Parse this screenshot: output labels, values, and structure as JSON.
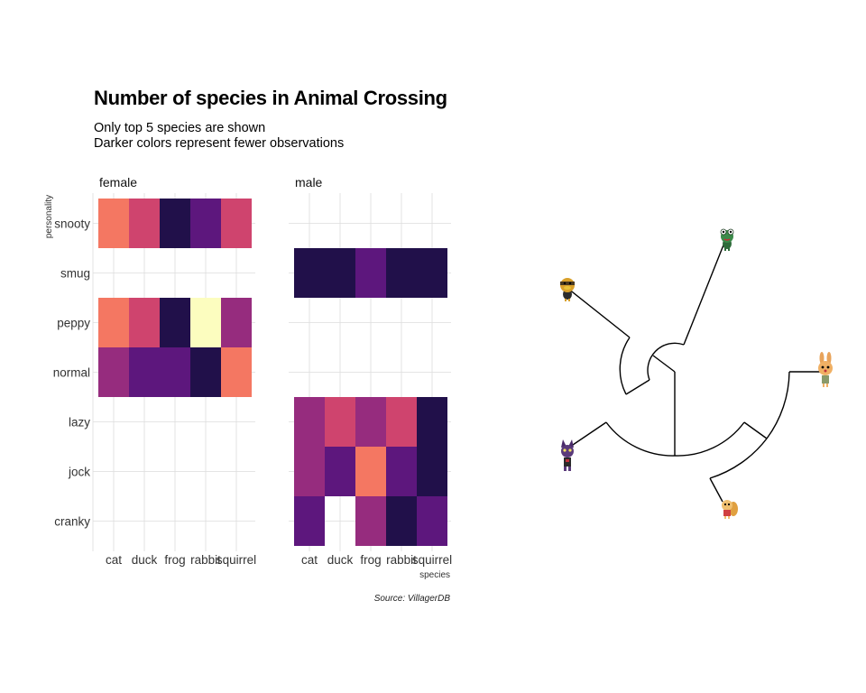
{
  "title": "Number of species in Animal Crossing",
  "subtitle_lines": [
    "Only top 5 species are shown",
    "Darker colors represent fewer observations"
  ],
  "caption": "Source: VillagerDB",
  "chart_data": {
    "type": "heatmap",
    "xlabel": "species",
    "ylabel": "personality",
    "x_categories": [
      "cat",
      "duck",
      "frog",
      "rabbit",
      "squirrel"
    ],
    "y_categories": [
      "snooty",
      "smug",
      "peppy",
      "normal",
      "lazy",
      "jock",
      "cranky"
    ],
    "color_scale": "magma",
    "color_direction": "darker = fewer observations",
    "value_range": [
      0,
      7
    ],
    "facets": [
      {
        "label": "female",
        "cells": {
          "snooty": {
            "cat": 5,
            "duck": 4,
            "frog": 1,
            "rabbit": 2,
            "squirrel": 4
          },
          "peppy": {
            "cat": 5,
            "duck": 4,
            "frog": 1,
            "rabbit": 7,
            "squirrel": 3
          },
          "normal": {
            "cat": 3,
            "duck": 2,
            "frog": 2,
            "rabbit": 1,
            "squirrel": 5
          }
        }
      },
      {
        "label": "male",
        "cells": {
          "smug": {
            "cat": 1,
            "duck": 1,
            "frog": 2,
            "rabbit": 1,
            "squirrel": 1
          },
          "lazy": {
            "cat": 3,
            "duck": 4,
            "frog": 3,
            "rabbit": 4,
            "squirrel": 1
          },
          "jock": {
            "cat": 3,
            "duck": 2,
            "frog": 5,
            "rabbit": 2,
            "squirrel": 1
          },
          "cranky": {
            "cat": 2,
            "frog": 3,
            "rabbit": 1,
            "squirrel": 2
          }
        }
      }
    ],
    "dendrogram": {
      "type": "circular-dendrogram",
      "leaves": [
        {
          "species": "frog",
          "icon": "frog-villager-icon"
        },
        {
          "species": "rabbit",
          "icon": "rabbit-villager-icon"
        },
        {
          "species": "squirrel",
          "icon": "squirrel-villager-icon"
        },
        {
          "species": "cat",
          "icon": "cat-villager-icon"
        },
        {
          "species": "duck",
          "icon": "duck-villager-icon"
        }
      ]
    }
  }
}
